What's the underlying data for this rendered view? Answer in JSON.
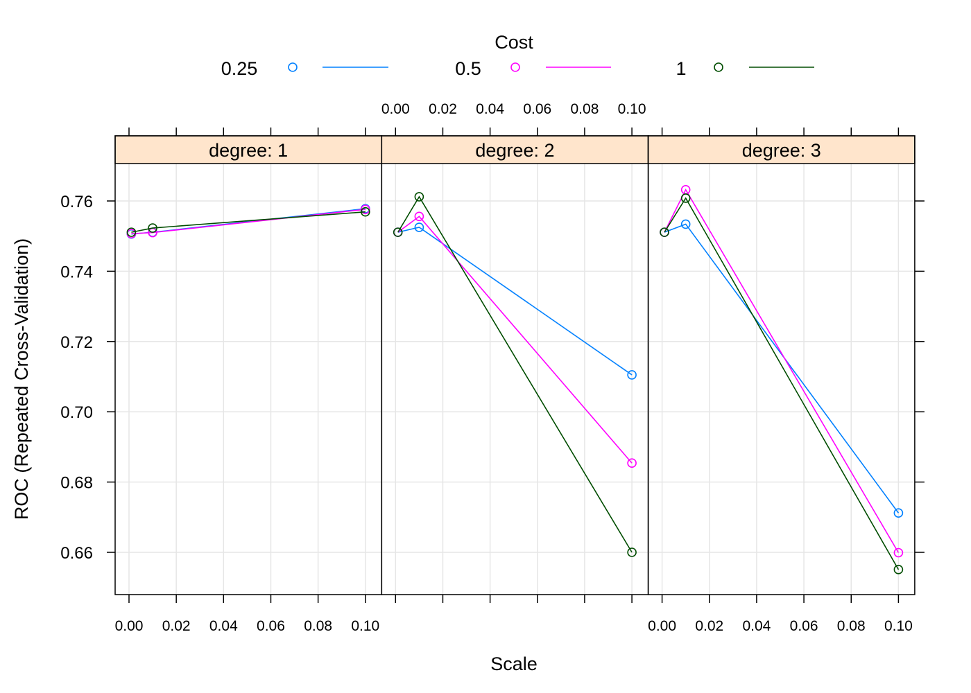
{
  "chart_data": {
    "type": "line",
    "xlabel": "Scale",
    "ylabel": "ROC (Repeated Cross-Validation)",
    "legend": {
      "title": "Cost",
      "placement": "top"
    },
    "xlim": [
      -0.005,
      0.106
    ],
    "ylim": [
      0.6475,
      0.7705
    ],
    "x_ticks": [
      "0.00",
      "0.02",
      "0.04",
      "0.06",
      "0.08",
      "0.10"
    ],
    "y_ticks": [
      "0.66",
      "0.68",
      "0.70",
      "0.72",
      "0.74",
      "0.76"
    ],
    "grid": true,
    "x": [
      0.001,
      0.01,
      0.1
    ],
    "colors": {
      "0.25": "#0080ff",
      "0.5": "#ff00ff",
      "1": "#004d00",
      "strip": "#ffe5cc"
    },
    "panels": [
      {
        "label": "degree: 1",
        "series": [
          {
            "name": "0.25",
            "values": [
              0.7506,
              0.7511,
              0.7578
            ]
          },
          {
            "name": "0.5",
            "values": [
              0.7507,
              0.751,
              0.7576
            ]
          },
          {
            "name": "1",
            "values": [
              0.7511,
              0.7523,
              0.7569
            ]
          }
        ]
      },
      {
        "label": "degree: 2",
        "series": [
          {
            "name": "0.25",
            "values": [
              0.7511,
              0.7525,
              0.7105
            ]
          },
          {
            "name": "0.5",
            "values": [
              0.7511,
              0.7556,
              0.6854
            ]
          },
          {
            "name": "1",
            "values": [
              0.7511,
              0.7612,
              0.66
            ]
          }
        ]
      },
      {
        "label": "degree: 3",
        "series": [
          {
            "name": "0.25",
            "values": [
              0.7511,
              0.7534,
              0.6712
            ]
          },
          {
            "name": "0.5",
            "values": [
              0.7511,
              0.7632,
              0.6599
            ]
          },
          {
            "name": "1",
            "values": [
              0.7511,
              0.7608,
              0.6551
            ]
          }
        ]
      }
    ]
  }
}
